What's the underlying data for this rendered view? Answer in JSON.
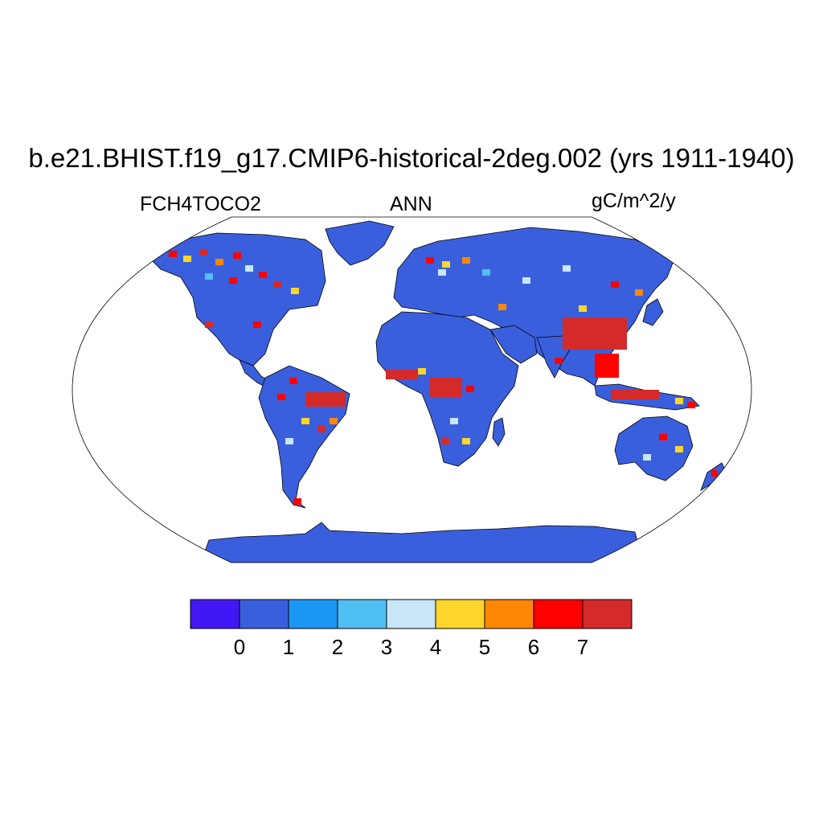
{
  "figure": {
    "title": "b.e21.BHIST.f19_g17.CMIP6-historical-2deg.002 (yrs 1911-1940)",
    "left_label": "FCH4TOCO2",
    "center_label": "ANN",
    "right_label": "gC/m^2/y"
  },
  "colorbar": {
    "colors": [
      "#4217f5",
      "#3a5fdd",
      "#1a97f5",
      "#50bff2",
      "#c8e6f7",
      "#fed52b",
      "#fe8705",
      "#fe0000",
      "#d42a2a"
    ],
    "tick_labels": [
      "0",
      "1",
      "2",
      "3",
      "4",
      "5",
      "6",
      "7"
    ]
  },
  "map": {
    "projection": "Robinson",
    "land_base_color": "#3a5fdd",
    "hotspot_colors": {
      "high": "#d42a2a",
      "very_high": "#fe0000",
      "mid": "#fe8705",
      "low_mid": "#fed52b",
      "light": "#c8e6f7",
      "cyan": "#50bff2"
    }
  }
}
